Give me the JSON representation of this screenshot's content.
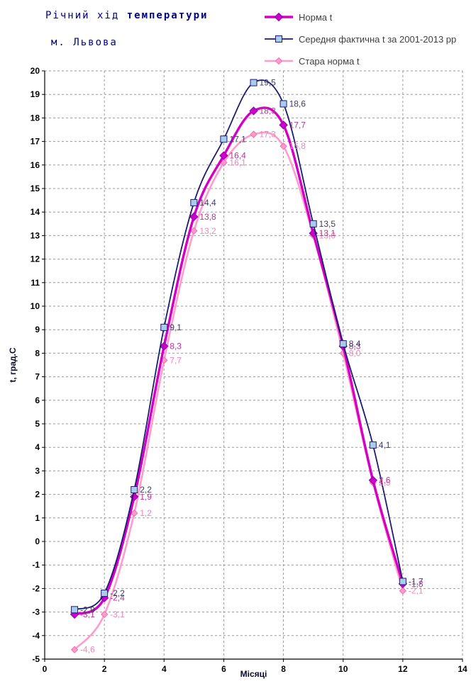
{
  "title": {
    "regular": "Річний хід ",
    "bold": "температури"
  },
  "subtitle": "м. Львова",
  "legend_items": [
    {
      "label": "Норма t"
    },
    {
      "label": "Середня фактична t за 2001-2013 рр"
    },
    {
      "label": "Стара норма t"
    }
  ],
  "chart_data": {
    "type": "line",
    "title": "Річний хід температури",
    "subtitle": "м. Львова",
    "xlabel": "Місяці",
    "ylabel": "t, град.С",
    "xlim": [
      0,
      14
    ],
    "ylim": [
      -5,
      20
    ],
    "x_ticks": [
      0,
      2,
      4,
      6,
      8,
      10,
      12,
      14
    ],
    "y_tick_step": 1,
    "grid": true,
    "legend_position": "top-right",
    "decimal_separator": ",",
    "x": [
      1,
      2,
      3,
      4,
      5,
      6,
      7,
      8,
      9,
      10,
      11,
      12
    ],
    "series": [
      {
        "name": "Норма t",
        "values": [
          -3.1,
          -2.4,
          1.9,
          8.3,
          13.8,
          16.4,
          18.3,
          17.7,
          13.1,
          8.3,
          2.6,
          -1.8
        ],
        "line_color": "#D400C4",
        "line_width": 3.4,
        "marker": "diamond",
        "marker_fill": "#CC00CC",
        "marker_stroke": "#9900AA",
        "marker_size": 9,
        "label_color": "#BB3399"
      },
      {
        "name": "Середня фактична t за 2001-2013 рр",
        "values": [
          -2.9,
          -2.2,
          2.2,
          9.1,
          14.4,
          17.1,
          19.5,
          18.6,
          13.5,
          8.4,
          4.1,
          -1.7
        ],
        "line_color": "#1C1C70",
        "line_width": 1.8,
        "marker": "square",
        "marker_fill": "#A8CBEE",
        "marker_stroke": "#1C1C70",
        "marker_size": 9,
        "label_color": "#3C3C64"
      },
      {
        "name": "Стара норма t",
        "values": [
          -4.6,
          -3.1,
          1.2,
          7.7,
          13.2,
          16.1,
          17.3,
          16.8,
          13.0,
          8.0,
          2.5,
          -2.1
        ],
        "line_color": "#FF9CCE",
        "line_width": 2.6,
        "marker": "diamond",
        "marker_fill": "#FF9CCE",
        "marker_stroke": "#F070B0",
        "marker_size": 7,
        "label_color": "#EC86BB"
      }
    ],
    "colors": {
      "grid": "#9a9a9a",
      "axis": "#000000",
      "title": "#000080"
    }
  }
}
